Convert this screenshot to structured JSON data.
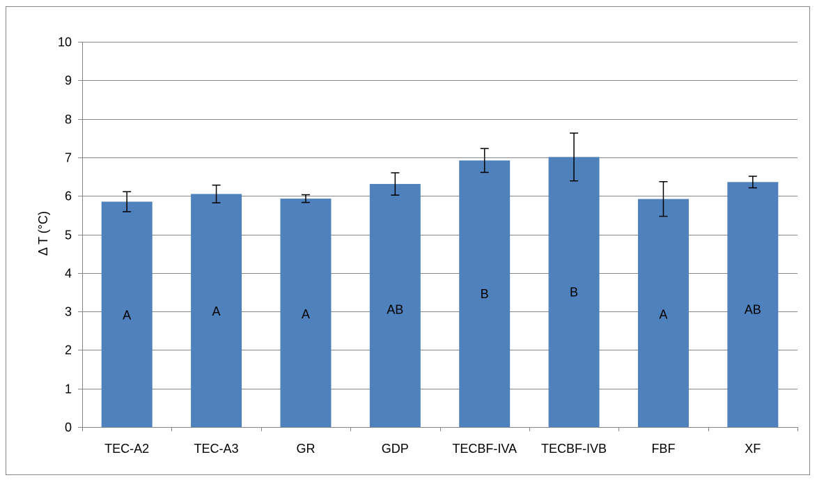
{
  "chart_data": {
    "type": "bar",
    "title": "",
    "xlabel": "",
    "ylabel": "Δ T (°C)",
    "ylim": [
      0,
      10
    ],
    "yticks": [
      0,
      1,
      2,
      3,
      4,
      5,
      6,
      7,
      8,
      9,
      10
    ],
    "grid": true,
    "legend": "none",
    "categories": [
      "TEC-A2",
      "TEC-A3",
      "GR",
      "GDP",
      "TECBF-IVA",
      "TECBF-IVB",
      "FBF",
      "XF"
    ],
    "series": [
      {
        "values": [
          5.85,
          6.05,
          5.93,
          6.31,
          6.92,
          7.01,
          5.92,
          6.36
        ],
        "error": [
          0.26,
          0.23,
          0.1,
          0.29,
          0.31,
          0.62,
          0.45,
          0.15
        ],
        "labels": [
          "A",
          "A",
          "A",
          "AB",
          "B",
          "B",
          "A",
          "AB"
        ],
        "label_y": [
          2.9,
          3.0,
          2.93,
          3.05,
          3.45,
          3.5,
          2.92,
          3.05
        ],
        "color": "#4F81BD"
      }
    ],
    "colors": {
      "bar": "#4F81BD",
      "grid": "#868686",
      "axis": "#868686",
      "error_bar": "#000000",
      "frame": "#868686"
    }
  }
}
